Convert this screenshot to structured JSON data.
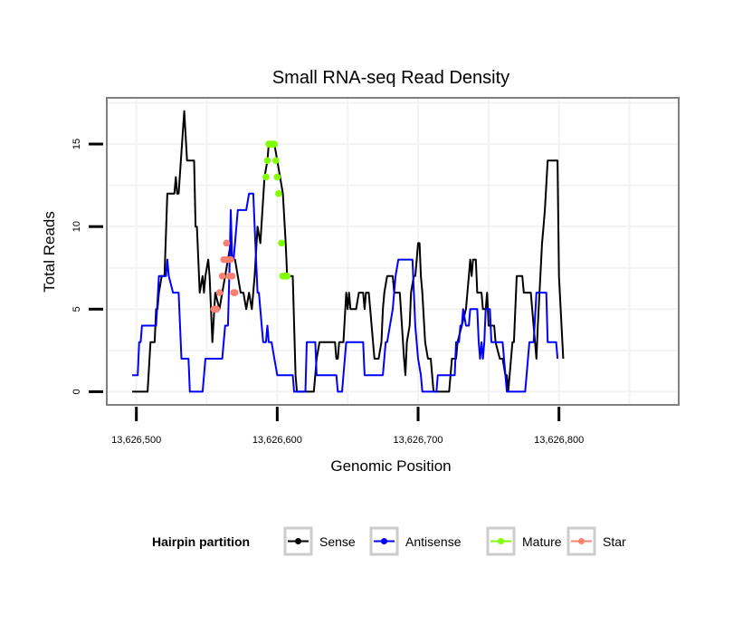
{
  "chart_data": {
    "type": "line",
    "title": "Small RNA-seq Read Density",
    "xlabel": "Genomic Position",
    "ylabel": "Total Reads",
    "x_offset_base": 13626000,
    "xlim": [
      13626479,
      13626885
    ],
    "ylim": [
      -0.8,
      17.8
    ],
    "x_ticks": [
      13626500,
      13626600,
      13626700,
      13626800
    ],
    "x_tick_labels": [
      "13,626,500",
      "13,626,600",
      "13,626,700",
      "13,626,800"
    ],
    "y_ticks": [
      0,
      5,
      10,
      15
    ],
    "y_tick_labels": [
      "0",
      "5",
      "10",
      "15"
    ],
    "grid": true,
    "legend": {
      "title": "Hairpin partition",
      "position": "bottom",
      "entries": [
        {
          "label": "Sense",
          "color": "#000000"
        },
        {
          "label": "Antisense",
          "color": "#0000ff"
        },
        {
          "label": "Mature",
          "color": "#7fff00"
        },
        {
          "label": "Star",
          "color": "#fa8072"
        }
      ]
    },
    "series": [
      {
        "name": "Sense",
        "color": "#000000",
        "kind": "line",
        "points": [
          [
            497,
            0
          ],
          [
            508,
            0
          ],
          [
            510,
            3
          ],
          [
            513,
            3
          ],
          [
            514,
            5
          ],
          [
            515,
            5
          ],
          [
            516,
            6
          ],
          [
            518,
            7
          ],
          [
            520,
            7
          ],
          [
            522,
            12
          ],
          [
            527,
            12
          ],
          [
            528,
            13
          ],
          [
            529,
            12
          ],
          [
            530,
            12
          ],
          [
            534,
            17
          ],
          [
            536,
            14
          ],
          [
            541,
            14
          ],
          [
            542,
            10
          ],
          [
            543,
            10
          ],
          [
            545,
            6
          ],
          [
            547,
            7
          ],
          [
            548,
            6
          ],
          [
            549,
            7
          ],
          [
            551,
            8
          ],
          [
            552,
            7
          ],
          [
            554,
            3
          ],
          [
            556,
            6
          ],
          [
            559,
            5
          ],
          [
            561,
            6
          ],
          [
            563,
            7
          ],
          [
            565,
            8
          ],
          [
            567,
            9
          ],
          [
            568,
            8
          ],
          [
            570,
            8
          ],
          [
            572,
            7
          ],
          [
            574,
            6
          ],
          [
            576,
            6
          ],
          [
            578,
            5
          ],
          [
            580,
            6
          ],
          [
            582,
            5
          ],
          [
            584,
            7
          ],
          [
            586,
            10
          ],
          [
            588,
            9
          ],
          [
            591,
            13
          ],
          [
            593,
            14
          ],
          [
            594,
            15
          ],
          [
            598,
            15
          ],
          [
            600,
            14
          ],
          [
            602,
            13
          ],
          [
            604,
            12
          ],
          [
            606,
            9
          ],
          [
            607,
            7
          ],
          [
            611,
            7
          ],
          [
            613,
            1
          ],
          [
            614,
            0
          ],
          [
            626,
            0
          ],
          [
            627,
            1
          ],
          [
            628,
            2
          ],
          [
            630,
            3
          ],
          [
            641,
            3
          ],
          [
            642,
            2
          ],
          [
            643,
            2
          ],
          [
            644,
            3
          ],
          [
            647,
            3
          ],
          [
            649,
            6
          ],
          [
            650,
            5
          ],
          [
            651,
            6
          ],
          [
            652,
            5
          ],
          [
            656,
            5
          ],
          [
            658,
            6
          ],
          [
            661,
            6
          ],
          [
            662,
            5
          ],
          [
            663,
            6
          ],
          [
            665,
            6
          ],
          [
            666,
            5
          ],
          [
            668,
            3
          ],
          [
            669,
            2
          ],
          [
            672,
            2
          ],
          [
            674,
            3
          ],
          [
            675,
            5
          ],
          [
            676,
            6
          ],
          [
            678,
            7
          ],
          [
            682,
            7
          ],
          [
            683,
            6
          ],
          [
            687,
            6
          ],
          [
            690,
            2
          ],
          [
            691,
            1
          ],
          [
            692,
            3
          ],
          [
            694,
            4
          ],
          [
            695,
            6
          ],
          [
            697,
            7
          ],
          [
            698,
            7
          ],
          [
            699,
            8
          ],
          [
            700,
            9
          ],
          [
            701,
            9
          ],
          [
            702,
            7
          ],
          [
            703,
            6
          ],
          [
            705,
            3
          ],
          [
            707,
            2
          ],
          [
            709,
            2
          ],
          [
            711,
            0
          ],
          [
            722,
            0
          ],
          [
            724,
            2
          ],
          [
            727,
            2
          ],
          [
            728,
            3
          ],
          [
            731,
            4
          ],
          [
            734,
            5
          ],
          [
            736,
            7
          ],
          [
            737,
            8
          ],
          [
            738,
            7
          ],
          [
            739,
            8
          ],
          [
            741,
            8
          ],
          [
            742,
            6
          ],
          [
            745,
            6
          ],
          [
            746,
            5
          ],
          [
            748,
            5
          ],
          [
            749,
            6
          ],
          [
            750,
            4
          ],
          [
            754,
            4
          ],
          [
            755,
            3
          ],
          [
            758,
            2
          ],
          [
            760,
            2
          ],
          [
            762,
            1
          ],
          [
            763,
            1
          ],
          [
            764,
            0
          ],
          [
            767,
            3
          ],
          [
            768,
            3
          ],
          [
            770,
            7
          ],
          [
            774,
            7
          ],
          [
            775,
            6
          ],
          [
            780,
            6
          ],
          [
            781,
            5
          ],
          [
            783,
            3
          ],
          [
            784,
            2
          ],
          [
            785,
            4
          ],
          [
            788,
            9
          ],
          [
            789,
            10
          ],
          [
            790,
            11
          ],
          [
            792,
            14
          ],
          [
            799,
            14
          ],
          [
            800,
            7
          ],
          [
            803,
            2
          ]
        ]
      },
      {
        "name": "Antisense",
        "color": "#0000ff",
        "kind": "line",
        "points": [
          [
            497,
            1
          ],
          [
            501,
            1
          ],
          [
            502,
            3
          ],
          [
            503,
            3
          ],
          [
            504,
            4
          ],
          [
            514,
            4
          ],
          [
            516,
            7
          ],
          [
            521,
            7
          ],
          [
            522,
            8
          ],
          [
            523,
            7
          ],
          [
            526,
            6
          ],
          [
            530,
            6
          ],
          [
            532,
            2
          ],
          [
            537,
            2
          ],
          [
            538,
            0
          ],
          [
            547,
            0
          ],
          [
            549,
            2
          ],
          [
            561,
            2
          ],
          [
            563,
            4
          ],
          [
            565,
            4
          ],
          [
            566,
            7
          ],
          [
            567,
            11
          ],
          [
            568,
            8
          ],
          [
            569,
            8
          ],
          [
            570,
            9
          ],
          [
            572,
            11
          ],
          [
            577,
            11
          ],
          [
            578,
            11
          ],
          [
            580,
            12
          ],
          [
            583,
            12
          ],
          [
            584,
            10
          ],
          [
            586,
            6
          ],
          [
            587,
            6
          ],
          [
            589,
            4
          ],
          [
            590,
            3
          ],
          [
            592,
            3
          ],
          [
            593,
            4
          ],
          [
            594,
            3
          ],
          [
            596,
            3
          ],
          [
            598,
            2
          ],
          [
            600,
            1
          ],
          [
            611,
            1
          ],
          [
            612,
            0
          ],
          [
            620,
            0
          ],
          [
            621,
            3
          ],
          [
            627,
            3
          ],
          [
            628,
            1
          ],
          [
            642,
            1
          ],
          [
            643,
            0
          ],
          [
            646,
            0
          ],
          [
            647,
            1
          ],
          [
            649,
            3
          ],
          [
            661,
            3
          ],
          [
            662,
            1
          ],
          [
            675,
            1
          ],
          [
            677,
            3
          ],
          [
            678,
            3
          ],
          [
            680,
            4
          ],
          [
            682,
            5
          ],
          [
            684,
            7
          ],
          [
            686,
            8
          ],
          [
            696,
            8
          ],
          [
            698,
            4
          ],
          [
            700,
            2
          ],
          [
            702,
            1
          ],
          [
            703,
            0
          ],
          [
            713,
            0
          ],
          [
            714,
            1
          ],
          [
            726,
            1
          ],
          [
            727,
            3
          ],
          [
            729,
            3
          ],
          [
            730,
            4
          ],
          [
            731,
            4
          ],
          [
            732,
            5
          ],
          [
            734,
            4
          ],
          [
            736,
            4
          ],
          [
            737,
            5
          ],
          [
            742,
            5
          ],
          [
            743,
            3
          ],
          [
            744,
            2
          ],
          [
            745,
            3
          ],
          [
            746,
            2
          ],
          [
            747,
            3
          ],
          [
            748,
            5
          ],
          [
            751,
            5
          ],
          [
            752,
            3
          ],
          [
            760,
            3
          ],
          [
            761,
            2
          ],
          [
            762,
            1
          ],
          [
            763,
            0
          ],
          [
            776,
            0
          ],
          [
            777,
            1
          ],
          [
            779,
            3
          ],
          [
            782,
            3
          ],
          [
            784,
            6
          ],
          [
            791,
            6
          ],
          [
            792,
            3
          ],
          [
            798,
            3
          ],
          [
            799,
            2
          ]
        ]
      },
      {
        "name": "Mature",
        "color": "#7fff00",
        "kind": "points",
        "points": [
          [
            592,
            13
          ],
          [
            593,
            14
          ],
          [
            594,
            15
          ],
          [
            595,
            15
          ],
          [
            596,
            15
          ],
          [
            597,
            15
          ],
          [
            598,
            15
          ],
          [
            599,
            14
          ],
          [
            600,
            13
          ],
          [
            601,
            12
          ],
          [
            603,
            9
          ],
          [
            604,
            7
          ],
          [
            605,
            7
          ],
          [
            606,
            7
          ],
          [
            607,
            7
          ]
        ]
      },
      {
        "name": "Star",
        "color": "#fa8072",
        "kind": "points",
        "points": [
          [
            555,
            5
          ],
          [
            556,
            5
          ],
          [
            557,
            5
          ],
          [
            559,
            6
          ],
          [
            561,
            7
          ],
          [
            562,
            8
          ],
          [
            563,
            8
          ],
          [
            564,
            9
          ],
          [
            565,
            8
          ],
          [
            566,
            7
          ],
          [
            567,
            8
          ],
          [
            568,
            7
          ],
          [
            569,
            6
          ],
          [
            570,
            6
          ]
        ]
      }
    ]
  }
}
